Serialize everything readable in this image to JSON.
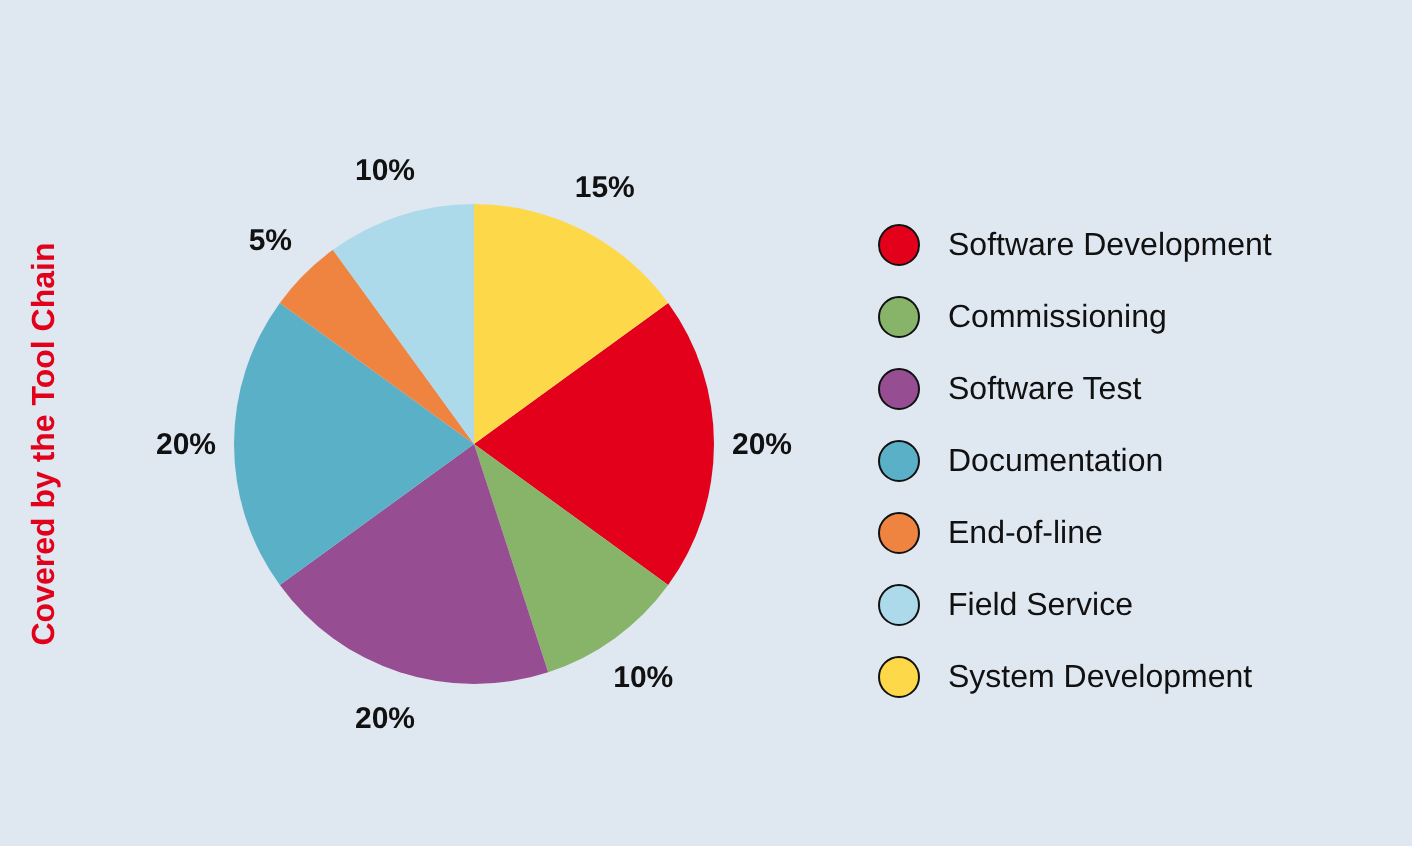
{
  "chart_data": {
    "type": "pie",
    "categories": [
      "Software Development",
      "Commissioning",
      "Software Test",
      "Documentation",
      "End-of-line",
      "Field Service",
      "System Development"
    ],
    "values": [
      20,
      10,
      20,
      20,
      5,
      10,
      15
    ],
    "colors": [
      "#e2001a",
      "#88b46a",
      "#964d92",
      "#5ab0c6",
      "#ee8440",
      "#acdaea",
      "#fdd94a"
    ],
    "value_labels": [
      "20%",
      "10%",
      "20%",
      "20%",
      "5%",
      "10%",
      "15%"
    ],
    "legend": "right",
    "annotations": [
      "Covered by the Tool Chain"
    ]
  }
}
